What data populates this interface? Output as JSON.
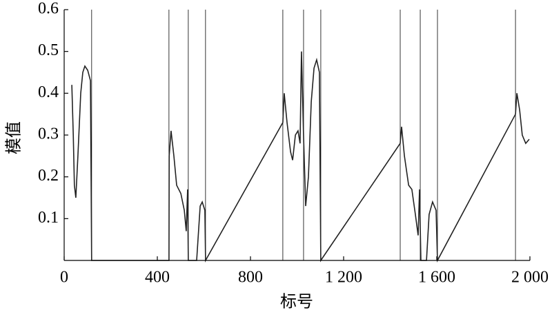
{
  "chart_data": {
    "type": "line",
    "x_label": "标号",
    "y_label": "模值",
    "xlim": [
      0,
      2000
    ],
    "ylim": [
      0,
      0.6
    ],
    "xticks": [
      0,
      400,
      800,
      {
        "value": 1200,
        "label": "1 200"
      },
      {
        "value": 1600,
        "label": "1 600"
      },
      {
        "value": 2000,
        "label": "2 000"
      }
    ],
    "yticks": [
      0.1,
      0.2,
      0.3,
      0.4,
      0.5,
      0.6
    ],
    "vlines": [
      118,
      450,
      533,
      607,
      939,
      1028,
      1102,
      1443,
      1529,
      1603,
      1938
    ],
    "series": [
      {
        "color": "#222222",
        "x": [
          33,
          39,
          44,
          50,
          59,
          71,
          80,
          89,
          101,
          113,
          118,
          450,
          451,
          459,
          471,
          483,
          501,
          516,
          524,
          530,
          533,
          569,
          584,
          593,
          604,
          607,
          939,
          945,
          957,
          972,
          981,
          993,
          1004,
          1013,
          1019,
          1028,
          1037,
          1049,
          1061,
          1073,
          1084,
          1096,
          1102,
          1443,
          1449,
          1461,
          1479,
          1493,
          1508,
          1520,
          1526,
          1532,
          1556,
          1567,
          1582,
          1597,
          1603,
          1938,
          1944,
          1956,
          1967,
          1982,
          1997
        ],
        "values": [
          0.42,
          0.3,
          0.18,
          0.15,
          0.25,
          0.4,
          0.45,
          0.465,
          0.455,
          0.43,
          0,
          0,
          0.25,
          0.31,
          0.25,
          0.18,
          0.16,
          0.12,
          0.07,
          0.17,
          0,
          0,
          0.13,
          0.14,
          0.12,
          0,
          0.33,
          0.4,
          0.33,
          0.26,
          0.24,
          0.3,
          0.31,
          0.28,
          0.5,
          0.3,
          0.13,
          0.2,
          0.38,
          0.46,
          0.48,
          0.45,
          0,
          0.28,
          0.32,
          0.25,
          0.18,
          0.17,
          0.11,
          0.06,
          0.17,
          0,
          0,
          0.11,
          0.14,
          0.12,
          0,
          0.35,
          0.4,
          0.36,
          0.3,
          0.28,
          0.29
        ]
      }
    ]
  }
}
